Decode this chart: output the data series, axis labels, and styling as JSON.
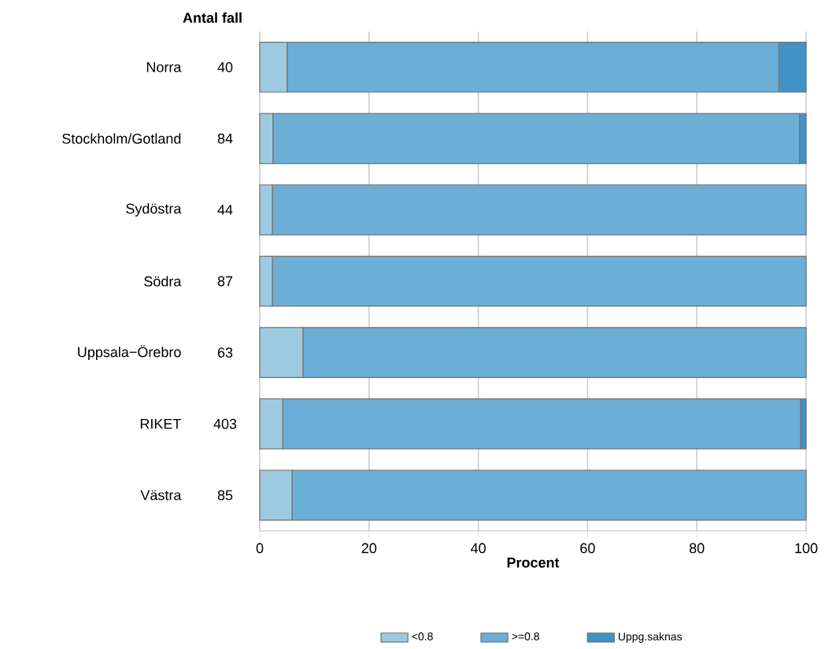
{
  "chart_data": {
    "type": "bar",
    "orientation": "horizontal",
    "stacked": true,
    "categories": [
      "Norra",
      "Stockholm/Gotland",
      "Sydöstra",
      "Södra",
      "Uppsala−Örebro",
      "RIKET",
      "Västra"
    ],
    "series": [
      {
        "name": "<0.8",
        "color": "#9ecae1",
        "values": [
          5.0,
          2.4,
          2.3,
          2.3,
          7.9,
          4.2,
          5.9
        ]
      },
      {
        "name": ">=0.8",
        "color": "#6baed6",
        "values": [
          90.0,
          96.4,
          97.7,
          97.7,
          92.1,
          94.8,
          94.1
        ]
      },
      {
        "name": "Uppg.saknas",
        "color": "#4292c6",
        "values": [
          5.0,
          1.2,
          0,
          0,
          0,
          1.0,
          0
        ]
      }
    ],
    "xlabel": "Procent",
    "xlim": [
      0,
      100
    ],
    "xticks": [
      0,
      20,
      40,
      60,
      80,
      100
    ],
    "grid": "x",
    "legend": "bottom",
    "annotations": [
      "Antal fall",
      "40",
      "84",
      "44",
      "87",
      "63",
      "403",
      "85"
    ]
  }
}
